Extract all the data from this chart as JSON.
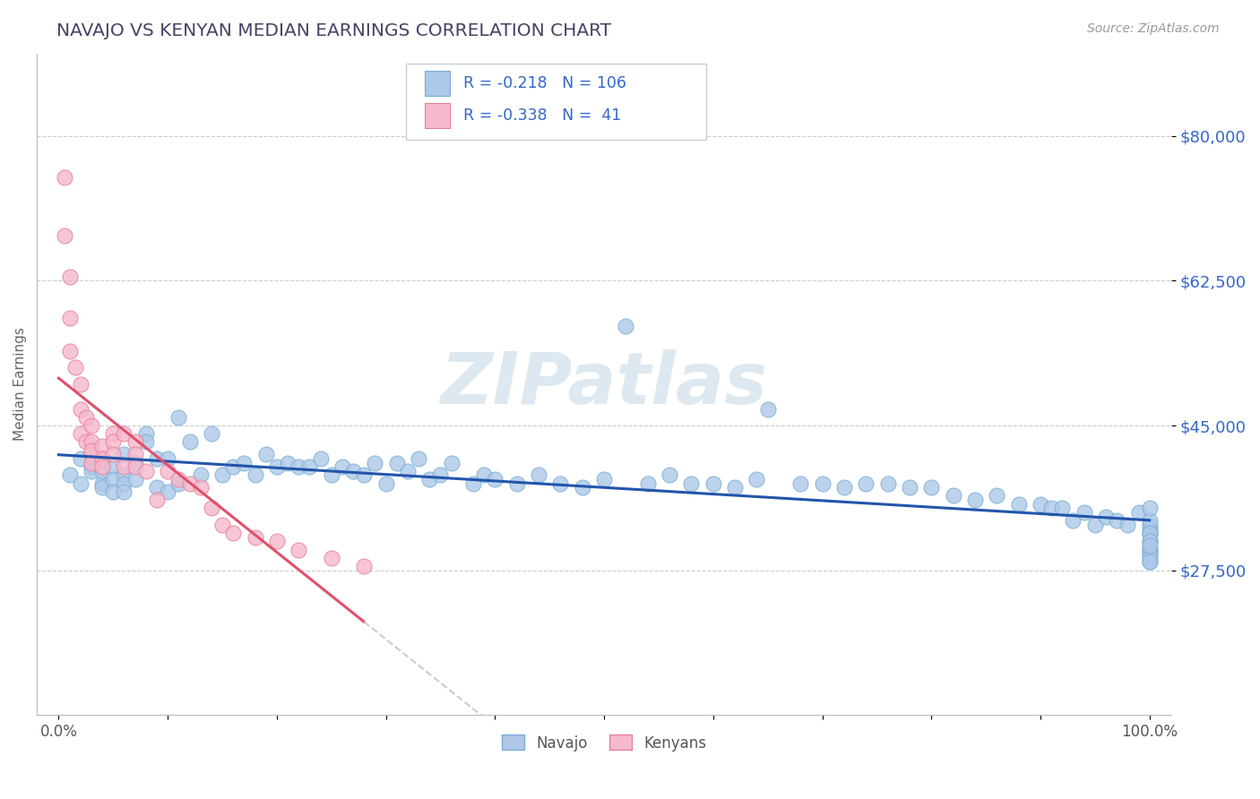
{
  "title": "NAVAJO VS KENYAN MEDIAN EARNINGS CORRELATION CHART",
  "source_text": "Source: ZipAtlas.com",
  "ylabel": "Median Earnings",
  "watermark": "ZIPatlas",
  "xlim": [
    -0.02,
    1.02
  ],
  "ylim": [
    10000,
    90000
  ],
  "yticks": [
    27500,
    45000,
    62500,
    80000
  ],
  "ytick_labels": [
    "$27,500",
    "$45,000",
    "$62,500",
    "$80,000"
  ],
  "xticks": [
    0.0,
    0.1,
    0.2,
    0.3,
    0.4,
    0.5,
    0.6,
    0.7,
    0.8,
    0.9,
    1.0
  ],
  "xtick_labels": [
    "0.0%",
    "",
    "",
    "",
    "",
    "",
    "",
    "",
    "",
    "",
    "100.0%"
  ],
  "navajo_color": "#adc8e8",
  "navajo_edge_color": "#7aaed6",
  "kenyan_color": "#f5b8cc",
  "kenyan_edge_color": "#e8809a",
  "trend_navajo_color": "#2255aa",
  "trend_kenyan_color": "#e0506a",
  "trend_dashed_color": "#cccccc",
  "R_navajo": -0.218,
  "N_navajo": 106,
  "R_kenyan": -0.338,
  "N_kenyan": 41,
  "navajo_label": "Navajo",
  "kenyan_label": "Kenyans",
  "legend_color": "#3366cc",
  "background_color": "#ffffff",
  "grid_color": "#cccccc",
  "title_color": "#444466",
  "navajo_x": [
    0.01,
    0.02,
    0.02,
    0.03,
    0.03,
    0.03,
    0.04,
    0.04,
    0.04,
    0.04,
    0.05,
    0.05,
    0.05,
    0.06,
    0.06,
    0.06,
    0.06,
    0.07,
    0.07,
    0.08,
    0.08,
    0.09,
    0.09,
    0.1,
    0.1,
    0.11,
    0.11,
    0.12,
    0.13,
    0.14,
    0.15,
    0.16,
    0.17,
    0.18,
    0.19,
    0.2,
    0.21,
    0.22,
    0.23,
    0.24,
    0.25,
    0.26,
    0.27,
    0.28,
    0.29,
    0.3,
    0.31,
    0.32,
    0.33,
    0.34,
    0.35,
    0.36,
    0.38,
    0.39,
    0.4,
    0.42,
    0.44,
    0.46,
    0.48,
    0.5,
    0.52,
    0.54,
    0.56,
    0.58,
    0.6,
    0.62,
    0.64,
    0.65,
    0.68,
    0.7,
    0.72,
    0.74,
    0.76,
    0.78,
    0.8,
    0.82,
    0.84,
    0.86,
    0.88,
    0.9,
    0.91,
    0.92,
    0.93,
    0.94,
    0.95,
    0.96,
    0.97,
    0.98,
    0.99,
    1.0,
    1.0,
    1.0,
    1.0,
    1.0,
    1.0,
    1.0,
    1.0,
    1.0,
    1.0,
    1.0,
    1.0,
    1.0,
    1.0,
    1.0,
    1.0,
    1.0
  ],
  "navajo_y": [
    39000,
    41000,
    38000,
    40000,
    41500,
    39500,
    38000,
    41000,
    39500,
    37500,
    40000,
    38500,
    37000,
    41500,
    39000,
    38000,
    37000,
    40500,
    38500,
    44000,
    43000,
    41000,
    37500,
    41000,
    37000,
    46000,
    38000,
    43000,
    39000,
    44000,
    39000,
    40000,
    40500,
    39000,
    41500,
    40000,
    40500,
    40000,
    40000,
    41000,
    39000,
    40000,
    39500,
    39000,
    40500,
    38000,
    40500,
    39500,
    41000,
    38500,
    39000,
    40500,
    38000,
    39000,
    38500,
    38000,
    39000,
    38000,
    37500,
    38500,
    57000,
    38000,
    39000,
    38000,
    38000,
    37500,
    38500,
    47000,
    38000,
    38000,
    37500,
    38000,
    38000,
    37500,
    37500,
    36500,
    36000,
    36500,
    35500,
    35500,
    35000,
    35000,
    33500,
    34500,
    33000,
    34000,
    33500,
    33000,
    34500,
    32000,
    32500,
    33000,
    29500,
    30000,
    32000,
    28500,
    33500,
    31000,
    30000,
    29500,
    35000,
    32000,
    31000,
    29000,
    30500,
    28500
  ],
  "kenyan_x": [
    0.005,
    0.005,
    0.01,
    0.01,
    0.01,
    0.015,
    0.02,
    0.02,
    0.02,
    0.025,
    0.025,
    0.03,
    0.03,
    0.03,
    0.03,
    0.03,
    0.04,
    0.04,
    0.04,
    0.05,
    0.05,
    0.05,
    0.06,
    0.06,
    0.07,
    0.07,
    0.07,
    0.08,
    0.09,
    0.1,
    0.11,
    0.12,
    0.13,
    0.14,
    0.15,
    0.16,
    0.18,
    0.2,
    0.22,
    0.25,
    0.28
  ],
  "kenyan_y": [
    75000,
    68000,
    63000,
    58000,
    54000,
    52000,
    50000,
    47000,
    44000,
    46000,
    43000,
    45000,
    43000,
    41500,
    42000,
    40500,
    42500,
    41000,
    40000,
    44000,
    43000,
    41500,
    44000,
    40000,
    43000,
    41500,
    40000,
    39500,
    36000,
    39500,
    38500,
    38000,
    37500,
    35000,
    33000,
    32000,
    31500,
    31000,
    30000,
    29000,
    28000
  ]
}
